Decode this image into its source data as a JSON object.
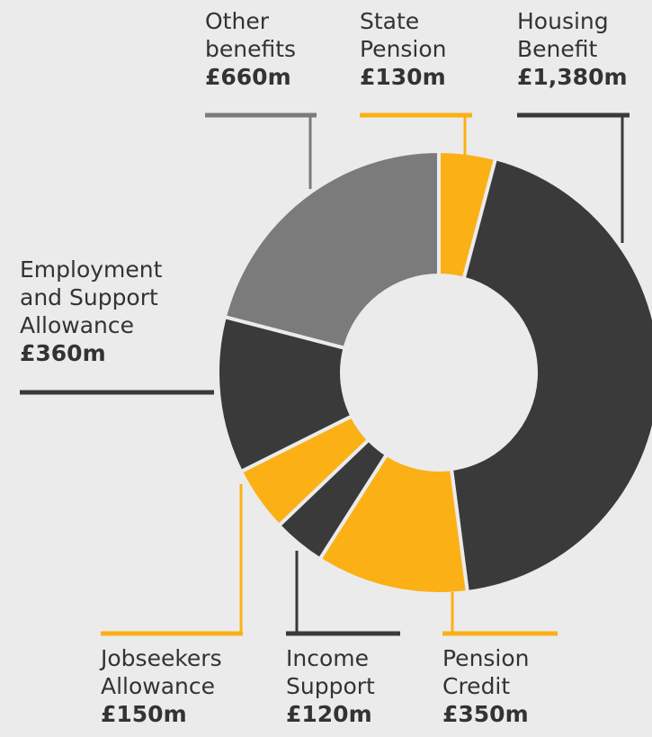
{
  "chart_data": {
    "type": "pie",
    "style": "donut",
    "unit": "£m",
    "colors": {
      "dark": "#3a3a3a",
      "yellow": "#fbb016",
      "grey": "#7b7b7b",
      "background": "#ebebeb"
    },
    "slices": [
      {
        "key": "state-pension",
        "label": "State\nPension",
        "value_label": "£130m",
        "value": 130,
        "color": "#fbb016"
      },
      {
        "key": "housing-benefit",
        "label": "Housing\nBenefit",
        "value_label": "£1,380m",
        "value": 1380,
        "color": "#3a3a3a"
      },
      {
        "key": "pension-credit",
        "label": "Pension\nCredit",
        "value_label": "£350m",
        "value": 350,
        "color": "#fbb016"
      },
      {
        "key": "income-support",
        "label": "Income\nSupport",
        "value_label": "£120m",
        "value": 120,
        "color": "#3a3a3a"
      },
      {
        "key": "jobseekers-allowance",
        "label": "Jobseekers\nAllowance",
        "value_label": "£150m",
        "value": 150,
        "color": "#fbb016"
      },
      {
        "key": "employment-support-allowance",
        "label": "Employment\nand Support\nAllowance",
        "value_label": "£360m",
        "value": 360,
        "color": "#3a3a3a"
      },
      {
        "key": "other-benefits",
        "label": "Other\nbenefits",
        "value_label": "£660m",
        "value": 660,
        "color": "#7b7b7b"
      }
    ]
  }
}
